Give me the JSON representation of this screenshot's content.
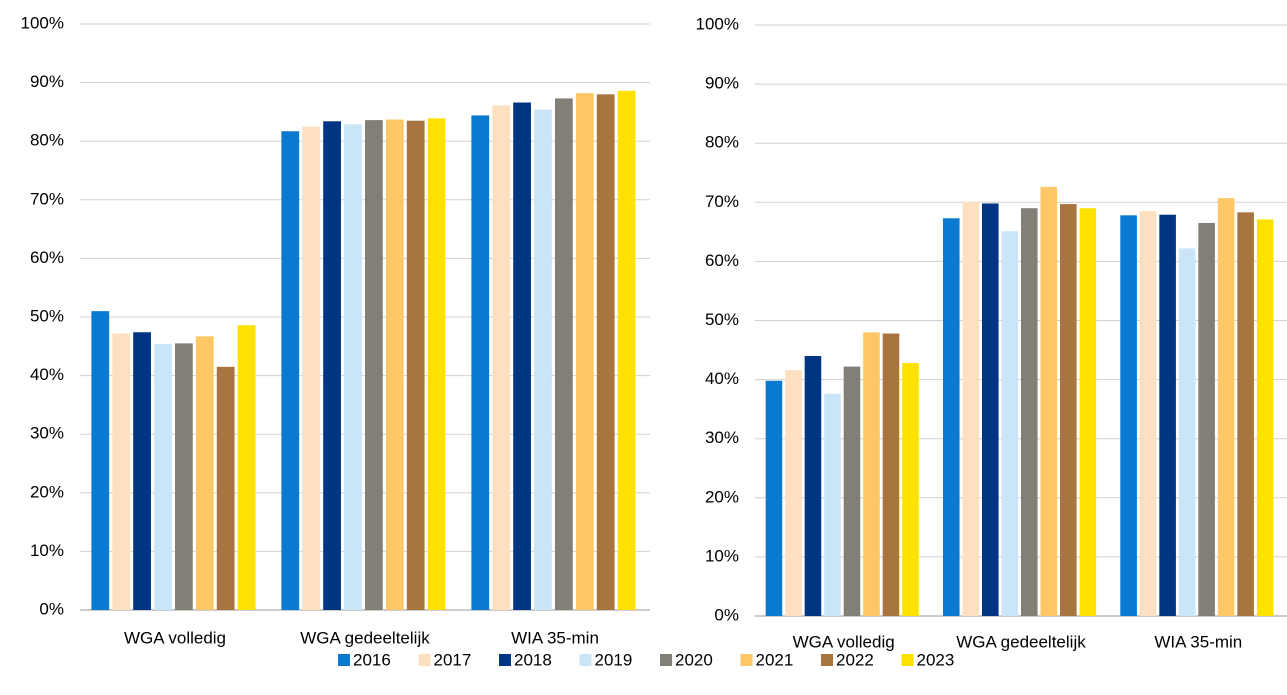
{
  "chart_data": [
    {
      "type": "bar",
      "categories": [
        "WGA volledig",
        "WGA gedeeltelijk",
        "WIA 35-min"
      ],
      "series": [
        {
          "name": "2016",
          "color": "#0a79d0",
          "values": [
            51.0,
            81.7,
            84.4
          ]
        },
        {
          "name": "2017",
          "color": "#fde0c0",
          "values": [
            47.2,
            82.5,
            86.1
          ]
        },
        {
          "name": "2018",
          "color": "#003584",
          "values": [
            47.4,
            83.4,
            86.6
          ]
        },
        {
          "name": "2019",
          "color": "#c9e5f6",
          "values": [
            45.4,
            82.9,
            85.4
          ]
        },
        {
          "name": "2020",
          "color": "#827f76",
          "values": [
            45.5,
            83.6,
            87.3
          ]
        },
        {
          "name": "2021",
          "color": "#fdc766",
          "values": [
            46.7,
            83.7,
            88.2
          ]
        },
        {
          "name": "2022",
          "color": "#a87440",
          "values": [
            41.5,
            83.5,
            88.0
          ]
        },
        {
          "name": "2023",
          "color": "#fee100",
          "values": [
            48.6,
            83.9,
            88.6
          ]
        }
      ],
      "ylim": [
        0,
        100
      ],
      "yticks": [
        {
          "value": 0,
          "label": "0%"
        },
        {
          "value": 10,
          "label": "10%"
        },
        {
          "value": 20,
          "label": "20%"
        },
        {
          "value": 30,
          "label": "30%"
        },
        {
          "value": 40,
          "label": "40%"
        },
        {
          "value": 50,
          "label": "50%"
        },
        {
          "value": 60,
          "label": "60%"
        },
        {
          "value": 70,
          "label": "70%"
        },
        {
          "value": 80,
          "label": "80%"
        },
        {
          "value": 90,
          "label": "90%"
        },
        {
          "value": 100,
          "label": "100%"
        }
      ],
      "grid": true,
      "legend": "bottom"
    },
    {
      "type": "bar",
      "categories": [
        "WGA volledig",
        "WGA gedeeltelijk",
        "WIA 35-min"
      ],
      "series": [
        {
          "color": "#0a79d0",
          "values": [
            39.8,
            67.3,
            67.8
          ]
        },
        {
          "color": "#fde0c0",
          "values": [
            41.6,
            70.1,
            68.5
          ]
        },
        {
          "color": "#003584",
          "values": [
            44.0,
            69.8,
            67.9
          ]
        },
        {
          "color": "#c9e5f6",
          "values": [
            37.6,
            65.1,
            62.2
          ]
        },
        {
          "color": "#827f76",
          "values": [
            42.2,
            69.0,
            66.5
          ]
        },
        {
          "color": "#fdc766",
          "values": [
            48.0,
            72.6,
            70.7
          ]
        },
        {
          "color": "#a87440",
          "values": [
            47.8,
            69.7,
            68.3
          ]
        },
        {
          "color": "#fee100",
          "values": [
            42.8,
            69.0,
            67.1
          ]
        }
      ],
      "ylim": [
        0,
        100
      ],
      "yticks": [
        {
          "value": 0,
          "label": "0%"
        },
        {
          "value": 10,
          "label": "10%"
        },
        {
          "value": 20,
          "label": "20%"
        },
        {
          "value": 30,
          "label": "30%"
        },
        {
          "value": 40,
          "label": "40%"
        },
        {
          "value": 50,
          "label": "50%"
        },
        {
          "value": 60,
          "label": "60%"
        },
        {
          "value": 70,
          "label": "70%"
        },
        {
          "value": 80,
          "label": "80%"
        },
        {
          "value": 90,
          "label": "90%"
        },
        {
          "value": 100,
          "label": "100%"
        }
      ],
      "grid": true
    }
  ]
}
